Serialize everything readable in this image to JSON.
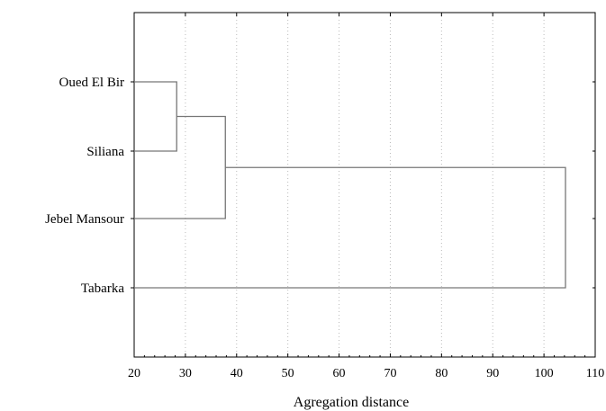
{
  "chart_data": {
    "type": "dendrogram",
    "orientation": "horizontal",
    "xlabel": "Agregation distance",
    "xlim": [
      20,
      110
    ],
    "x_ticks": [
      20,
      30,
      40,
      50,
      60,
      70,
      80,
      90,
      100,
      110
    ],
    "grid": "vertical dotted",
    "leaves": [
      "Oued El Bir",
      "Siliana",
      "Jebel Mansour",
      "Tabarka"
    ],
    "merges": [
      {
        "left": "Oued El Bir",
        "right": "Siliana",
        "distance": 28.3
      },
      {
        "left": "Oued El Bir + Siliana",
        "right": "Jebel Mansour",
        "distance": 37.8
      },
      {
        "left": "Oued El Bir + Siliana + Jebel Mansour",
        "right": "Tabarka",
        "distance": 104.2
      }
    ]
  }
}
